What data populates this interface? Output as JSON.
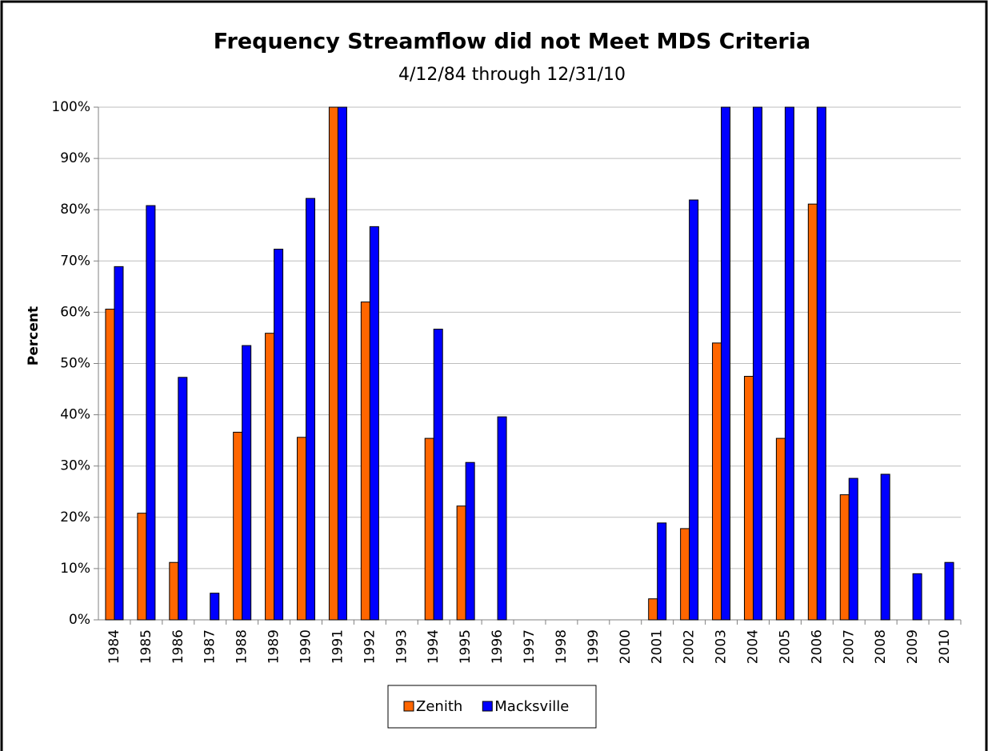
{
  "chart_data": {
    "type": "bar",
    "title": "Frequency Streamflow did not Meet MDS Criteria",
    "subtitle": "4/12/84 through 12/31/10",
    "y_label": "Percent",
    "categories": [
      "1984",
      "1985",
      "1986",
      "1987",
      "1988",
      "1989",
      "1990",
      "1991",
      "1992",
      "1993",
      "1994",
      "1995",
      "1996",
      "1997",
      "1998",
      "1999",
      "2000",
      "2001",
      "2002",
      "2003",
      "2004",
      "2005",
      "2006",
      "2007",
      "2008",
      "2009",
      "2010"
    ],
    "series": [
      {
        "name": "Zenith",
        "color": "#ff6600",
        "values": [
          60.6,
          20.8,
          11.2,
          0,
          36.6,
          55.9,
          35.6,
          100,
          62.0,
          0,
          35.4,
          22.2,
          0,
          0,
          0,
          0,
          0,
          4.1,
          17.8,
          54.0,
          47.5,
          35.4,
          81.1,
          24.4,
          0,
          0,
          0
        ]
      },
      {
        "name": "Macksville",
        "color": "#0000ff",
        "values": [
          68.9,
          80.8,
          47.3,
          5.2,
          53.5,
          72.3,
          82.2,
          100,
          76.7,
          0,
          56.7,
          30.7,
          39.6,
          0,
          0,
          0,
          0,
          18.9,
          81.9,
          100,
          100,
          100,
          100,
          27.6,
          28.4,
          9.0,
          11.2
        ]
      }
    ],
    "ylim": [
      0,
      100
    ],
    "yticks": [
      {
        "value": 0,
        "label": "0%"
      },
      {
        "value": 10,
        "label": "10%"
      },
      {
        "value": 20,
        "label": "20%"
      },
      {
        "value": 30,
        "label": "30%"
      },
      {
        "value": 40,
        "label": "40%"
      },
      {
        "value": 50,
        "label": "50%"
      },
      {
        "value": 60,
        "label": "60%"
      },
      {
        "value": 70,
        "label": "70%"
      },
      {
        "value": 80,
        "label": "80%"
      },
      {
        "value": 90,
        "label": "90%"
      },
      {
        "value": 100,
        "label": "100%"
      }
    ],
    "grid": true,
    "legend": "bottom"
  }
}
